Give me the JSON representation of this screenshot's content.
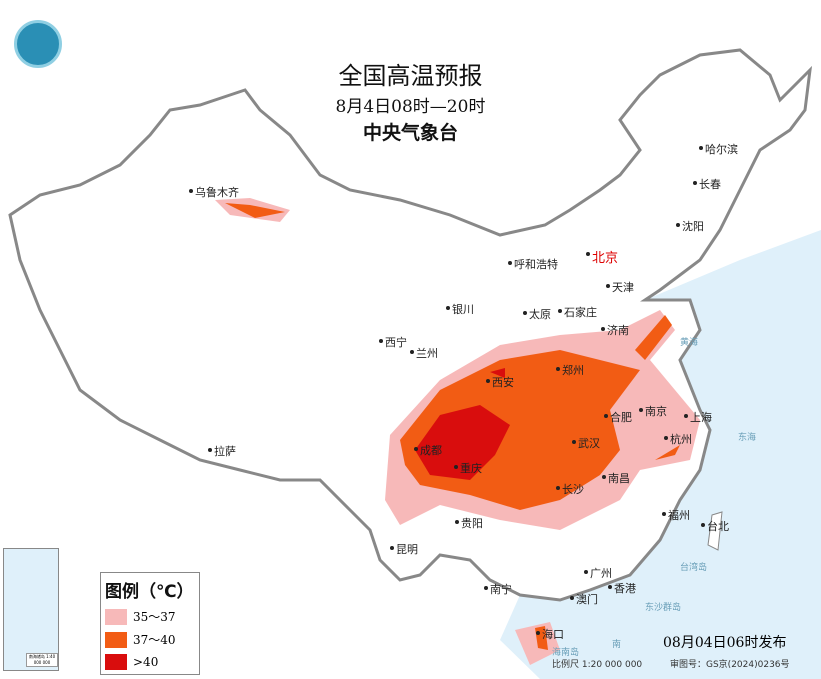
{
  "header": {
    "title": "全国高温预报",
    "period": "8月4日08时—20时",
    "issuer": "中央气象台"
  },
  "cities": [
    "乌鲁木齐",
    "哈尔滨",
    "长春",
    "沈阳",
    "北京",
    "呼和浩特",
    "天津",
    "太原",
    "石家庄",
    "银川",
    "济南",
    "西宁",
    "兰州",
    "郑州",
    "西安",
    "合肥",
    "南京",
    "上海",
    "成都",
    "重庆",
    "武汉",
    "杭州",
    "拉萨",
    "长沙",
    "南昌",
    "福州",
    "台北",
    "贵阳",
    "昆明",
    "南宁",
    "广州",
    "澳门",
    "香港",
    "海口"
  ],
  "seas": [
    "黄海",
    "东海",
    "台湾岛",
    "东沙群岛",
    "海南岛",
    "南"
  ],
  "legend": {
    "title": "图例（℃）",
    "items": [
      {
        "label": "35～37",
        "color": "#f7b9b9"
      },
      {
        "label": "37～40",
        "color": "#f25c14"
      },
      {
        "label": ">40",
        "color": "#d90d0d"
      }
    ]
  },
  "inset": {
    "label": "南海诸岛 1:40 000 000"
  },
  "footer": {
    "published": "08月04日06时发布",
    "scale": "比例尺 1:20 000 000",
    "review": "审图号：GS京(2024)0236号"
  },
  "colors": {
    "sea": "#dff0fa",
    "land": "#ffffff",
    "border": "#888888"
  }
}
